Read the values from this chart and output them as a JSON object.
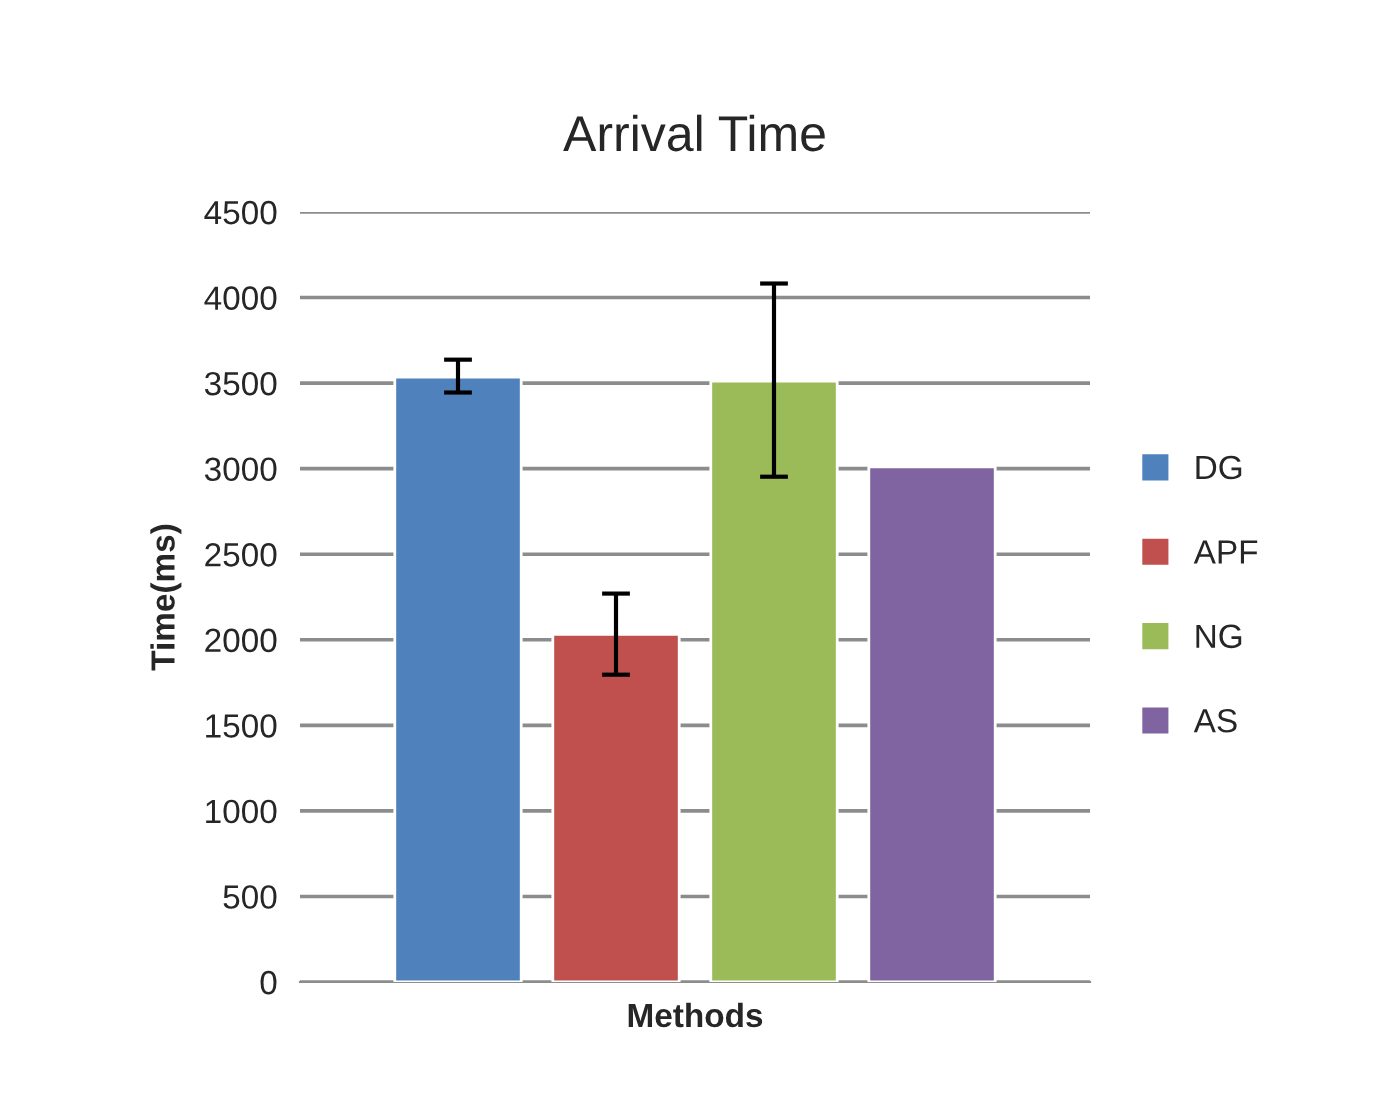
{
  "chart_data": {
    "type": "bar",
    "title": "Arrival Time",
    "xlabel": "Methods",
    "ylabel": "Time(ms)",
    "categories": [
      null
    ],
    "series": [
      {
        "name": "DG",
        "color": "#4f81bd",
        "values": [
          3535
        ],
        "errors": [
          [
            3445,
            3637
          ]
        ]
      },
      {
        "name": "APF",
        "color": "#c0504d",
        "values": [
          2031
        ],
        "errors": [
          [
            1796,
            2270
          ]
        ]
      },
      {
        "name": "NG",
        "color": "#9bbb59",
        "values": [
          3512
        ],
        "errors": [
          [
            2953,
            4082
          ]
        ]
      },
      {
        "name": "AS",
        "color": "#8064a2",
        "values": [
          3010
        ],
        "errors": [
          null
        ]
      }
    ],
    "ylim": [
      0,
      4500
    ],
    "yticks": [
      0,
      500,
      1000,
      1500,
      2000,
      2500,
      3000,
      3500,
      4000,
      4500
    ],
    "grid": "y",
    "legend": "right"
  }
}
